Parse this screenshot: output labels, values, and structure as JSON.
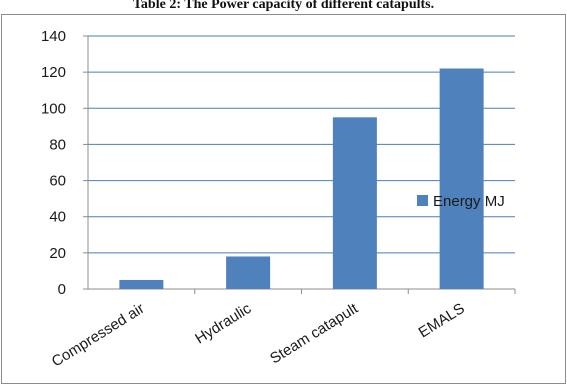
{
  "caption": "Table 2: The Power capacity of different catapults.",
  "colors": {
    "bar": "#4f81bd",
    "grid": "#4a7ebb",
    "axis": "#8c8c8c"
  },
  "chart_data": {
    "type": "bar",
    "title": "",
    "xlabel": "",
    "ylabel": "",
    "categories": [
      "Compressed air",
      "Hydraulic",
      "Steam catapult",
      "EMALS"
    ],
    "series": [
      {
        "name": "Energy MJ",
        "values": [
          5,
          18,
          95,
          122
        ]
      }
    ],
    "ylim": [
      0,
      140
    ],
    "yticks": [
      0,
      20,
      40,
      60,
      80,
      100,
      120,
      140
    ],
    "grid": true,
    "legend": "right"
  }
}
